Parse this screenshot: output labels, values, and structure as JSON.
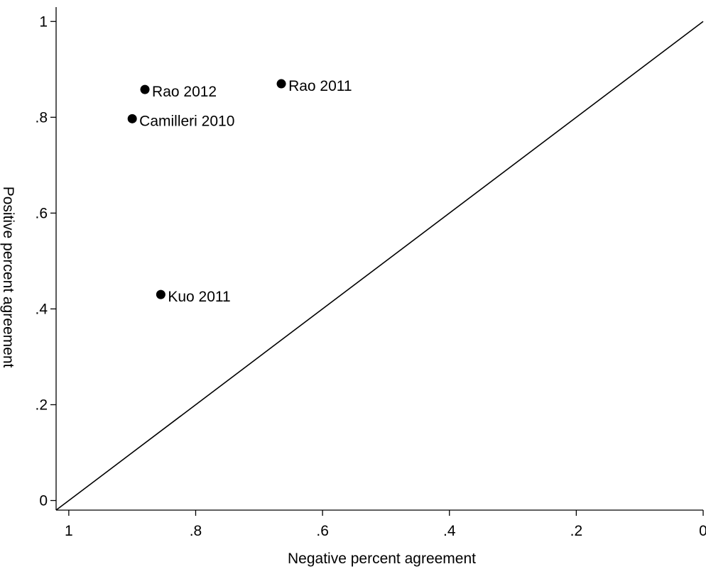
{
  "chart_data": {
    "type": "scatter",
    "title": "",
    "xlabel": "Negative percent agreement",
    "ylabel": "Positive percent agreement",
    "xlim": [
      1.02,
      0
    ],
    "ylim": [
      -0.02,
      1.03
    ],
    "x_reversed": true,
    "x_ticks": [
      1,
      0.8,
      0.6,
      0.4,
      0.2,
      0
    ],
    "x_tick_labels": [
      "1",
      ".8",
      ".6",
      ".4",
      ".2",
      "0"
    ],
    "y_ticks": [
      0,
      0.2,
      0.4,
      0.6,
      0.8,
      1
    ],
    "y_tick_labels": [
      "0",
      ".2",
      ".4",
      ".6",
      ".8",
      "1"
    ],
    "grid": false,
    "reference_line": {
      "from": [
        1.02,
        -0.02
      ],
      "to": [
        0,
        1
      ]
    },
    "points": [
      {
        "label": "Rao 2012",
        "x": 0.88,
        "y": 0.858
      },
      {
        "label": "Rao 2011",
        "x": 0.665,
        "y": 0.87
      },
      {
        "label": "Camilleri 2010",
        "x": 0.9,
        "y": 0.797
      },
      {
        "label": "Kuo 2011",
        "x": 0.855,
        "y": 0.43
      }
    ],
    "colors": {
      "marker": "#000000",
      "line": "#000000",
      "axis": "#000000"
    }
  }
}
